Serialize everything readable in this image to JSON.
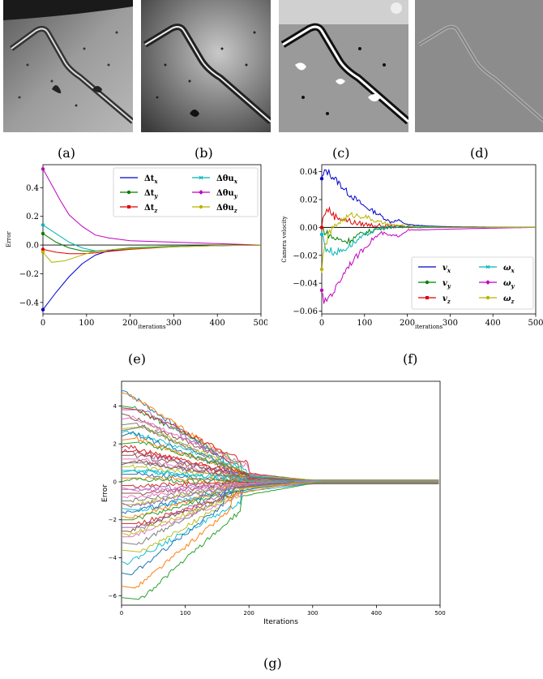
{
  "figure_captions": [
    "(a)",
    "(b)",
    "(c)",
    "(d)",
    "(e)",
    "(f)",
    "(g)"
  ],
  "chart_data": [
    {
      "type": "line",
      "panel": "(e)",
      "xlabel": "iterations",
      "ylabel": "Error",
      "xlim": [
        0,
        500
      ],
      "ylim": [
        -0.48,
        0.56
      ],
      "xticks": [
        0,
        100,
        200,
        300,
        400,
        500
      ],
      "yticks": [
        0.4,
        0.2,
        0.0,
        -0.2,
        -0.4
      ],
      "legend_position": "top-right",
      "grid": false,
      "series": [
        {
          "name": "Δt_x",
          "legend_main": "Δt",
          "legend_sub": "x",
          "color": "#0000cc",
          "x": [
            0,
            30,
            60,
            90,
            120,
            150,
            200,
            300,
            400,
            500
          ],
          "y": [
            -0.45,
            -0.33,
            -0.22,
            -0.13,
            -0.07,
            -0.04,
            -0.025,
            -0.01,
            -0.004,
            0.0
          ]
        },
        {
          "name": "Δt_y",
          "legend_main": "Δt",
          "legend_sub": "y",
          "color": "#008000",
          "x": [
            0,
            30,
            60,
            90,
            120,
            150,
            200,
            300,
            400,
            500
          ],
          "y": [
            0.08,
            0.02,
            -0.02,
            -0.04,
            -0.045,
            -0.035,
            -0.02,
            -0.008,
            -0.003,
            0.0
          ]
        },
        {
          "name": "Δt_z",
          "legend_main": "Δt",
          "legend_sub": "z",
          "color": "#e00000",
          "x": [
            0,
            30,
            60,
            90,
            120,
            150,
            200,
            300,
            400,
            500
          ],
          "y": [
            -0.03,
            -0.05,
            -0.06,
            -0.06,
            -0.055,
            -0.045,
            -0.03,
            -0.012,
            -0.004,
            0.0
          ]
        },
        {
          "name": "Δθu_x",
          "legend_main": "Δθu",
          "legend_sub": "x",
          "color": "#00b5b5",
          "x": [
            0,
            30,
            60,
            90,
            120,
            150,
            200,
            300,
            400,
            500
          ],
          "y": [
            0.14,
            0.08,
            0.02,
            -0.02,
            -0.04,
            -0.035,
            -0.025,
            -0.01,
            -0.004,
            0.0
          ]
        },
        {
          "name": "Δθu_y",
          "legend_main": "Δθu",
          "legend_sub": "y",
          "color": "#c000c0",
          "x": [
            0,
            20,
            40,
            60,
            90,
            120,
            150,
            200,
            300,
            400,
            500
          ],
          "y": [
            0.53,
            0.42,
            0.31,
            0.21,
            0.13,
            0.07,
            0.05,
            0.03,
            0.02,
            0.01,
            0.0
          ]
        },
        {
          "name": "Δθu_z",
          "legend_main": "Δθu",
          "legend_sub": "z",
          "color": "#b5b500",
          "x": [
            0,
            20,
            50,
            80,
            110,
            150,
            200,
            300,
            400,
            500
          ],
          "y": [
            -0.05,
            -0.12,
            -0.11,
            -0.08,
            -0.05,
            -0.035,
            -0.025,
            -0.012,
            -0.004,
            0.0
          ]
        }
      ]
    },
    {
      "type": "line",
      "panel": "(f)",
      "xlabel": "iterations",
      "ylabel": "Camera velocity",
      "xlim": [
        0,
        500
      ],
      "ylim": [
        -0.062,
        0.045
      ],
      "xticks": [
        0,
        100,
        200,
        300,
        400,
        500
      ],
      "yticks": [
        0.04,
        0.02,
        0.0,
        -0.02,
        -0.04,
        -0.06
      ],
      "legend_position": "bottom-right",
      "grid": false,
      "series": [
        {
          "name": "v_x",
          "legend_main": "v",
          "legend_sub": "x",
          "color": "#0000cc",
          "x": [
            0,
            10,
            20,
            40,
            60,
            80,
            100,
            130,
            160,
            180,
            200,
            250,
            300,
            400,
            500
          ],
          "y": [
            0.035,
            0.041,
            0.038,
            0.032,
            0.025,
            0.02,
            0.015,
            0.01,
            0.004,
            0.005,
            0.002,
            0.001,
            0.0005,
            0.0002,
            0.0
          ]
        },
        {
          "name": "v_y",
          "legend_main": "v",
          "legend_sub": "y",
          "color": "#008000",
          "x": [
            0,
            10,
            30,
            60,
            90,
            120,
            150,
            200,
            300,
            400,
            500
          ],
          "y": [
            0.0,
            -0.004,
            -0.008,
            -0.01,
            -0.005,
            -0.002,
            0.0,
            0.001,
            0.0,
            0.0,
            0.0
          ]
        },
        {
          "name": "v_z",
          "legend_main": "v",
          "legend_sub": "z",
          "color": "#e00000",
          "x": [
            0,
            5,
            15,
            30,
            50,
            80,
            110,
            150,
            200,
            300,
            400,
            500
          ],
          "y": [
            0.0,
            0.01,
            0.013,
            0.008,
            0.006,
            0.003,
            0.002,
            0.001,
            0.0,
            0.0,
            0.0,
            0.0
          ]
        },
        {
          "name": "ω_x",
          "legend_main": "ω",
          "legend_sub": "x",
          "color": "#00b5b5",
          "x": [
            0,
            10,
            30,
            50,
            80,
            110,
            140,
            200,
            300,
            400,
            500
          ],
          "y": [
            -0.005,
            -0.015,
            -0.018,
            -0.016,
            -0.01,
            -0.004,
            0.0,
            0.0,
            0.0,
            0.0,
            0.0
          ]
        },
        {
          "name": "ω_y",
          "legend_main": "ω",
          "legend_sub": "y",
          "color": "#c000c0",
          "x": [
            0,
            5,
            15,
            30,
            60,
            90,
            120,
            140,
            160,
            180,
            200,
            260,
            300,
            400,
            500
          ],
          "y": [
            -0.045,
            -0.055,
            -0.05,
            -0.045,
            -0.028,
            -0.018,
            -0.008,
            -0.004,
            -0.006,
            -0.006,
            -0.002,
            -0.0015,
            -0.0012,
            -0.0005,
            0.0
          ]
        },
        {
          "name": "ω_z",
          "legend_main": "ω",
          "legend_sub": "z",
          "color": "#b5b500",
          "x": [
            0,
            5,
            15,
            40,
            70,
            100,
            130,
            160,
            200,
            300,
            400,
            500
          ],
          "y": [
            -0.03,
            -0.018,
            -0.005,
            0.004,
            0.009,
            0.008,
            0.004,
            0.002,
            0.001,
            0.0,
            0.0,
            0.0
          ]
        }
      ]
    },
    {
      "type": "line",
      "panel": "(g)",
      "xlabel": "Iterations",
      "ylabel": "Error",
      "xlim": [
        0,
        500
      ],
      "ylim": [
        -6.5,
        5.3
      ],
      "xticks": [
        0,
        100,
        200,
        300,
        400,
        500
      ],
      "yticks": [
        4,
        2,
        0,
        -2,
        -4,
        -6
      ],
      "grid": false,
      "series_count": 50,
      "start_values": [
        4.8,
        4.7,
        4.0,
        3.9,
        3.8,
        3.6,
        3.3,
        3.0,
        2.8,
        2.6,
        2.4,
        2.2,
        2.0,
        1.8,
        1.6,
        1.4,
        1.2,
        1.0,
        0.8,
        0.6,
        0.4,
        0.2,
        0.0,
        -0.2,
        -0.4,
        -0.6,
        -0.8,
        -1.0,
        -1.2,
        -1.4,
        -1.6,
        -1.8,
        -2.0,
        -2.2,
        -2.4,
        -2.6,
        -2.9,
        -3.2,
        -3.6,
        -4.2,
        -4.8,
        -5.5,
        -6.1,
        1.5,
        -1.1,
        0.9,
        -0.3,
        2.7,
        -2.7,
        0.5
      ],
      "peak_values": [
        4.8,
        4.6,
        3.9,
        3.8,
        3.8,
        3.5,
        3.4,
        3.1,
        2.9,
        2.7,
        2.6,
        2.3,
        2.1,
        1.9,
        1.6,
        1.4,
        1.2,
        1.0,
        0.8,
        0.6,
        0.4,
        0.2,
        0.1,
        -0.2,
        -0.4,
        -0.6,
        -0.8,
        -1.0,
        -1.2,
        -1.5,
        -1.6,
        -1.9,
        -2.0,
        -2.2,
        -2.4,
        -2.6,
        -2.9,
        -3.3,
        -3.7,
        -4.3,
        -4.9,
        -5.6,
        -6.2,
        1.7,
        -1.3,
        1.1,
        -0.5,
        2.9,
        -2.8,
        0.6
      ],
      "palette": [
        "#1f77b4",
        "#ff7f0e",
        "#2ca02c",
        "#d62728",
        "#9467bd",
        "#8c564b",
        "#e377c2",
        "#7f7f7f",
        "#bcbd22",
        "#17becf"
      ]
    }
  ]
}
